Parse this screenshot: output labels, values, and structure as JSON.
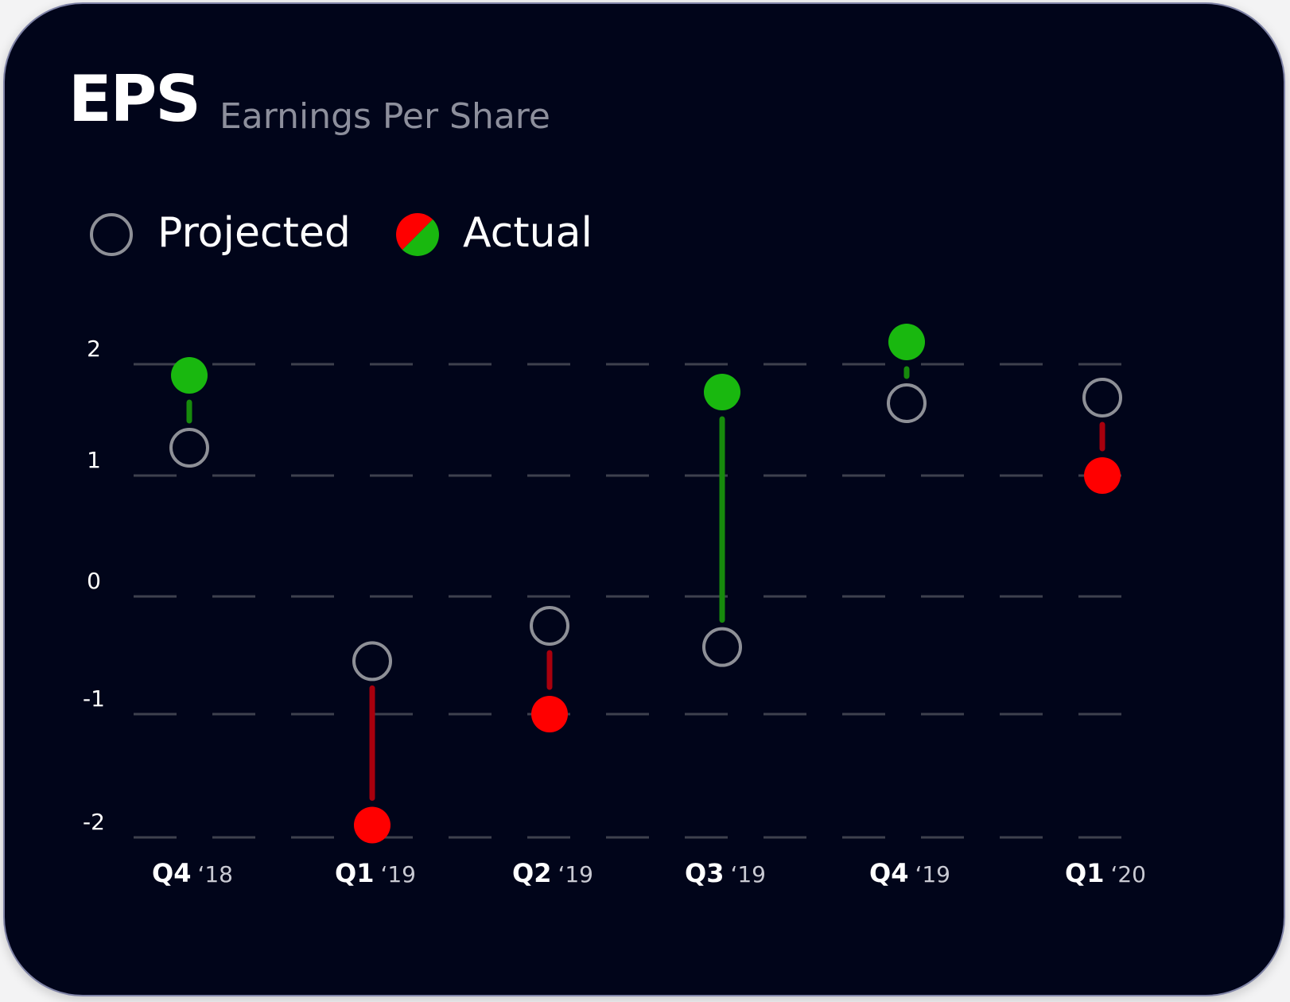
{
  "header": {
    "title": "EPS",
    "subtitle": "Earnings Per Share"
  },
  "legend": {
    "projected_label": "Projected",
    "actual_label": "Actual"
  },
  "colors": {
    "background": "#01051a",
    "beat": "#19b80f",
    "miss": "#ff0000",
    "beat_line": "#178a0c",
    "miss_line": "#a8000d",
    "projected_ring": "#8e9097",
    "grid": "#3e414e"
  },
  "chart_data": {
    "type": "scatter",
    "title": "EPS",
    "subtitle": "Earnings Per Share",
    "ylim": [
      -2,
      2
    ],
    "yticks": [
      2,
      1,
      0,
      -1,
      -2
    ],
    "ytick_labels": [
      "2",
      "1",
      "0",
      "-1",
      "-2"
    ],
    "grid": "dashed horizontal",
    "categories": [
      {
        "quarter": "Q4",
        "year": "‘18"
      },
      {
        "quarter": "Q1",
        "year": "‘19"
      },
      {
        "quarter": "Q2",
        "year": "‘19"
      },
      {
        "quarter": "Q3",
        "year": "‘19"
      },
      {
        "quarter": "Q4",
        "year": "‘19"
      },
      {
        "quarter": "Q1",
        "year": "‘20"
      }
    ],
    "series": [
      {
        "name": "Projected",
        "values": [
          1.25,
          -0.55,
          -0.25,
          -0.43,
          1.65,
          1.7
        ]
      },
      {
        "name": "Actual",
        "values": [
          1.9,
          -1.9,
          -1.0,
          1.75,
          2.2,
          1.0
        ]
      }
    ],
    "legend_position": "top-left"
  }
}
